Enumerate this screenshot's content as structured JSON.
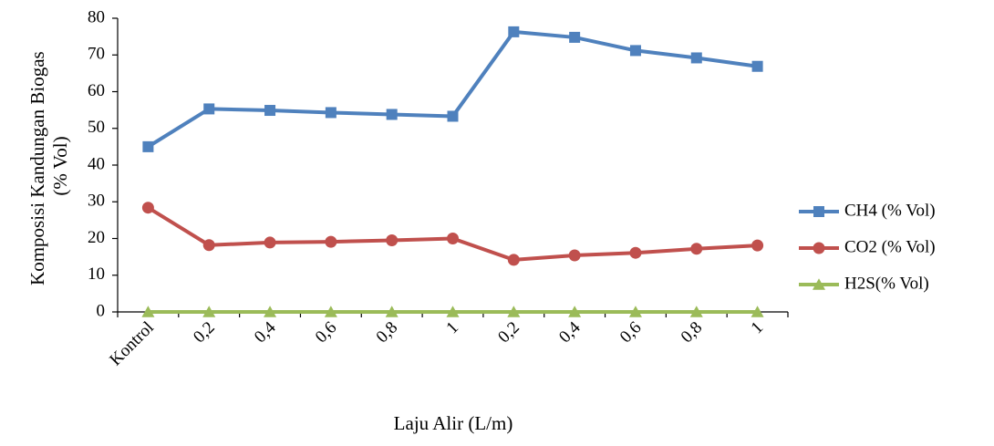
{
  "chart_data": {
    "type": "line",
    "title": "",
    "xlabel": "Laju Alir (L/m)",
    "ylabel_line1": "Komposisi Kandungan Biogas",
    "ylabel_line2": "(% Vol)",
    "categories": [
      "Kontrol",
      "0,2",
      "0,4",
      "0,6",
      "0,8",
      "1",
      "0,2",
      "0,4",
      "0,6",
      "0,8",
      "1"
    ],
    "ylim": [
      0,
      80
    ],
    "yticks": [
      0,
      10,
      20,
      30,
      40,
      50,
      60,
      70,
      80
    ],
    "grid": false,
    "legend_position": "right",
    "series": [
      {
        "name": "CH4 (% Vol)",
        "color": "#4F81BD",
        "marker": "square",
        "values": [
          45.0,
          55.3,
          54.9,
          54.3,
          53.8,
          53.3,
          76.3,
          74.8,
          71.2,
          69.2,
          66.9
        ]
      },
      {
        "name": "CO2 (% Vol)",
        "color": "#C0504D",
        "marker": "circle",
        "values": [
          28.4,
          18.2,
          18.9,
          19.1,
          19.5,
          20.0,
          14.2,
          15.4,
          16.1,
          17.2,
          18.1
        ]
      },
      {
        "name": "H2S(% Vol)",
        "color": "#9BBB59",
        "marker": "triangle",
        "values": [
          0,
          0,
          0,
          0,
          0,
          0,
          0,
          0,
          0,
          0,
          0
        ]
      }
    ]
  }
}
